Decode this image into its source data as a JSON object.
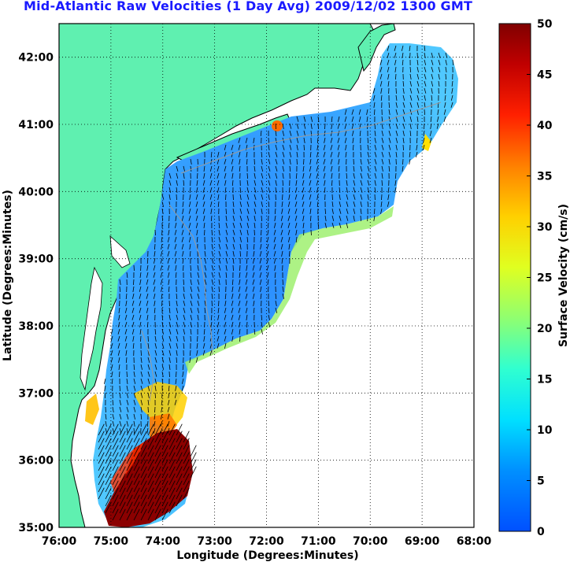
{
  "title": "Mid-Atlantic Raw Velocities (1 Day Avg) 2009/12/02 1300 GMT",
  "map": {
    "x_axis_label": "Longitude (Degrees:Minutes)",
    "y_axis_label": "Latitude (Degrees:Minutes)",
    "x_ticks": [
      "76:00",
      "75:00",
      "74:00",
      "73:00",
      "72:00",
      "71:00",
      "70:00",
      "69:00",
      "68:00"
    ],
    "y_ticks": [
      "42:00",
      "41:00",
      "40:00",
      "39:00",
      "38:00",
      "37:00",
      "36:00",
      "35:00"
    ],
    "lon_range": [
      -76,
      -68
    ],
    "lat_range": [
      35,
      42.5
    ],
    "land_color": "#5ff0b0",
    "grid": "dotted"
  },
  "colorbar": {
    "label": "Surface Velocity (cm/s)",
    "ticks": [
      "0",
      "5",
      "10",
      "15",
      "20",
      "25",
      "30",
      "35",
      "40",
      "45",
      "50"
    ],
    "range": [
      0,
      50
    ],
    "colormap": "jet"
  }
}
